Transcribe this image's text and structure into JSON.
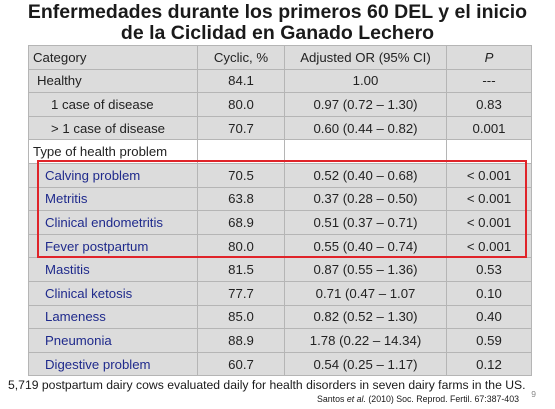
{
  "title": {
    "line1": "Enfermedades  durante los primeros 60 DEL y el inicio",
    "line2": "de la Ciclidad en Ganado Lechero"
  },
  "table": {
    "headers": [
      "Category",
      "Cyclic, %",
      "Adjusted OR (95% CI)",
      "P"
    ],
    "summary_rows": [
      {
        "name": "Healthy",
        "cyclic": "84.1",
        "or": "1.00",
        "p": "---"
      },
      {
        "name": "1 case of disease",
        "cyclic": "80.0",
        "or": "0.97 (0.72 – 1.30)",
        "p": "0.83"
      },
      {
        "name": "> 1 case of disease",
        "cyclic": "70.7",
        "or": "0.60 (0.44 – 0.82)",
        "p": "0.001"
      }
    ],
    "section_label": "Type of health problem",
    "problem_rows": [
      {
        "name": "Calving problem",
        "cyclic": "70.5",
        "or": "0.52 (0.40 – 0.68)",
        "p": "< 0.001"
      },
      {
        "name": "Metritis",
        "cyclic": "63.8",
        "or": "0.37 (0.28 – 0.50)",
        "p": "< 0.001"
      },
      {
        "name": "Clinical endometritis",
        "cyclic": "68.9",
        "or": "0.51 (0.37 – 0.71)",
        "p": "< 0.001"
      },
      {
        "name": "Fever postpartum",
        "cyclic": "80.0",
        "or": "0.55 (0.40 – 0.74)",
        "p": "< 0.001"
      },
      {
        "name": "Mastitis",
        "cyclic": "81.5",
        "or": "0.87 (0.55 – 1.36)",
        "p": "0.53"
      },
      {
        "name": "Clinical ketosis",
        "cyclic": "77.7",
        "or": "0.71 (0.47 – 1.07",
        "p": "0.10"
      },
      {
        "name": "Lameness",
        "cyclic": "85.0",
        "or": "0.82 (0.52 – 1.30)",
        "p": "0.40"
      },
      {
        "name": "Pneumonia",
        "cyclic": "88.9",
        "or": "1.78 (0.22 – 14.34)",
        "p": "0.59"
      },
      {
        "name": "Digestive problem",
        "cyclic": "60.7",
        "or": "0.54 (0.25 – 1.17)",
        "p": "0.12"
      }
    ]
  },
  "footnote": "5,719 postpartum dairy cows evaluated daily for health disorders in seven dairy farms in the US.",
  "citation": {
    "author": "Santos ",
    "etal": "et al.",
    "rest": " (2010) Soc. Reprod. Fertil. 67:387-403"
  },
  "page_number": "9",
  "colors": {
    "highlight": "#e0242a",
    "row_label_blue": "#1f2a8c",
    "cell_gray": "#dcdcdc"
  }
}
